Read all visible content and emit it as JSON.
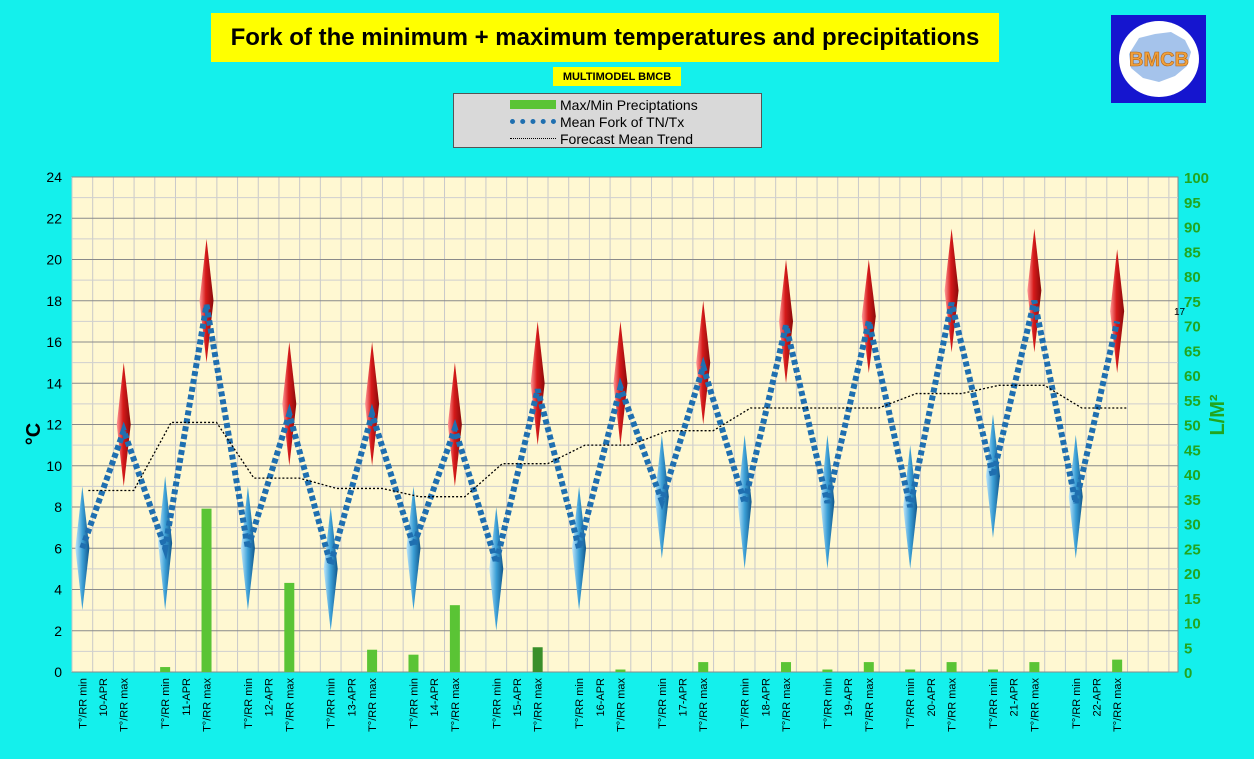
{
  "header": {
    "title": "Fork of the minimum + maximum temperatures and precipitations",
    "subtitle": "MULTIMODEL BMCB",
    "logo_text": "BMCB"
  },
  "legend": {
    "items": [
      {
        "label": "Max/Min Preciptations",
        "icon": "green-bar-swatch"
      },
      {
        "label": "Mean Fork of TN/Tx",
        "icon": "blue-dotted-line-swatch"
      },
      {
        "label": "Forecast Mean Trend",
        "icon": "black-dotted-line-swatch"
      }
    ]
  },
  "colors": {
    "background": "#14f0ec",
    "plot_background": "#fff8d2",
    "title_background": "#ffff00",
    "precip_bar": "#5ac435",
    "precip_bar_highlight": "#3a8f2a",
    "mean_fork": "#1f6fb0",
    "trend": "#000000",
    "max_spike": "#d61a1a",
    "min_spike": "#3b9fd6",
    "right_axis": "#22a51f"
  },
  "chart_data": {
    "type": "line",
    "y_left": {
      "label": "°C",
      "range": [
        0,
        24
      ],
      "ticks": [
        0,
        2,
        4,
        6,
        8,
        10,
        12,
        14,
        16,
        18,
        20,
        22,
        24
      ]
    },
    "y_right": {
      "label": "L/M²",
      "range": [
        0,
        100
      ],
      "ticks": [
        0,
        5,
        10,
        15,
        20,
        25,
        30,
        35,
        40,
        45,
        50,
        55,
        60,
        65,
        70,
        75,
        80,
        85,
        90,
        95,
        100
      ]
    },
    "grid": true,
    "legend_position": "top-center",
    "dates": [
      "10-APR",
      "11-APR",
      "12-APR",
      "13-APR",
      "14-APR",
      "15-APR",
      "16-APR",
      "17-APR",
      "18-APR",
      "19-APR",
      "20-APR",
      "21-APR",
      "22-APR"
    ],
    "x_tick_labels": [
      "T°/RR min",
      "T°/RR max"
    ],
    "series": [
      {
        "name": "Mean Fork of TN/Tx",
        "points": [
          {
            "date": "10-APR",
            "min": 6.0,
            "max": 11.7
          },
          {
            "date": "11-APR",
            "min": 6.0,
            "max": 17.8
          },
          {
            "date": "12-APR",
            "min": 6.0,
            "max": 12.5
          },
          {
            "date": "13-APR",
            "min": 5.2,
            "max": 12.5
          },
          {
            "date": "14-APR",
            "min": 6.1,
            "max": 11.8
          },
          {
            "date": "15-APR",
            "min": 5.3,
            "max": 13.7
          },
          {
            "date": "16-APR",
            "min": 6.0,
            "max": 13.8
          },
          {
            "date": "17-APR",
            "min": 8.3,
            "max": 14.8
          },
          {
            "date": "18-APR",
            "min": 8.2,
            "max": 16.8
          },
          {
            "date": "19-APR",
            "min": 8.2,
            "max": 17.0
          },
          {
            "date": "20-APR",
            "min": 8.0,
            "max": 17.9
          },
          {
            "date": "21-APR",
            "min": 9.5,
            "max": 18.0
          },
          {
            "date": "22-APR",
            "min": 8.2,
            "max": 17.0
          }
        ]
      },
      {
        "name": "Forecast Mean Trend",
        "values": [
          8.8,
          12.1,
          9.4,
          8.9,
          8.5,
          10.1,
          11.0,
          11.7,
          12.8,
          12.8,
          13.5,
          13.9,
          12.8
        ]
      },
      {
        "name": "Max/Min Preciptations",
        "unit": "L/M²",
        "bars": [
          {
            "date": "10-APR",
            "min": 0.0,
            "max": 0.0
          },
          {
            "date": "11-APR",
            "min": 1.0,
            "max": 33.0
          },
          {
            "date": "12-APR",
            "min": 0.0,
            "max": 18.0
          },
          {
            "date": "13-APR",
            "min": 0.0,
            "max": 4.5
          },
          {
            "date": "14-APR",
            "min": 3.5,
            "max": 13.5
          },
          {
            "date": "15-APR",
            "min": 0.0,
            "max": 5.0
          },
          {
            "date": "16-APR",
            "min": 0.0,
            "max": 0.5
          },
          {
            "date": "17-APR",
            "min": 0.0,
            "max": 2.0
          },
          {
            "date": "18-APR",
            "min": 0.0,
            "max": 2.0
          },
          {
            "date": "19-APR",
            "min": 0.5,
            "max": 2.0
          },
          {
            "date": "20-APR",
            "min": 0.5,
            "max": 2.0
          },
          {
            "date": "21-APR",
            "min": 0.5,
            "max": 2.0
          },
          {
            "date": "22-APR",
            "min": 0.0,
            "max": 2.5
          }
        ]
      },
      {
        "name": "Spread",
        "points": [
          {
            "date": "10-APR",
            "min_lo": 3.0,
            "min_hi": 9.0,
            "max_lo": 9.0,
            "max_hi": 15.0
          },
          {
            "date": "11-APR",
            "min_lo": 3.0,
            "min_hi": 9.5,
            "max_lo": 15.0,
            "max_hi": 21.0
          },
          {
            "date": "12-APR",
            "min_lo": 3.0,
            "min_hi": 9.0,
            "max_lo": 10.0,
            "max_hi": 16.0
          },
          {
            "date": "13-APR",
            "min_lo": 2.0,
            "min_hi": 8.0,
            "max_lo": 10.0,
            "max_hi": 16.0
          },
          {
            "date": "14-APR",
            "min_lo": 3.0,
            "min_hi": 9.0,
            "max_lo": 9.0,
            "max_hi": 15.0
          },
          {
            "date": "15-APR",
            "min_lo": 2.0,
            "min_hi": 8.0,
            "max_lo": 11.0,
            "max_hi": 17.0
          },
          {
            "date": "16-APR",
            "min_lo": 3.0,
            "min_hi": 9.0,
            "max_lo": 11.0,
            "max_hi": 17.0
          },
          {
            "date": "17-APR",
            "min_lo": 5.5,
            "min_hi": 11.5,
            "max_lo": 12.0,
            "max_hi": 18.0
          },
          {
            "date": "18-APR",
            "min_lo": 5.0,
            "min_hi": 11.5,
            "max_lo": 14.0,
            "max_hi": 20.0
          },
          {
            "date": "19-APR",
            "min_lo": 5.0,
            "min_hi": 11.5,
            "max_lo": 14.5,
            "max_hi": 20.0
          },
          {
            "date": "20-APR",
            "min_lo": 5.0,
            "min_hi": 11.0,
            "max_lo": 15.5,
            "max_hi": 21.5
          },
          {
            "date": "21-APR",
            "min_lo": 6.5,
            "min_hi": 12.5,
            "max_lo": 15.5,
            "max_hi": 21.5
          },
          {
            "date": "22-APR",
            "min_lo": 5.5,
            "min_hi": 11.5,
            "max_lo": 14.5,
            "max_hi": 20.5
          }
        ]
      }
    ],
    "annotations": [
      "17"
    ]
  }
}
